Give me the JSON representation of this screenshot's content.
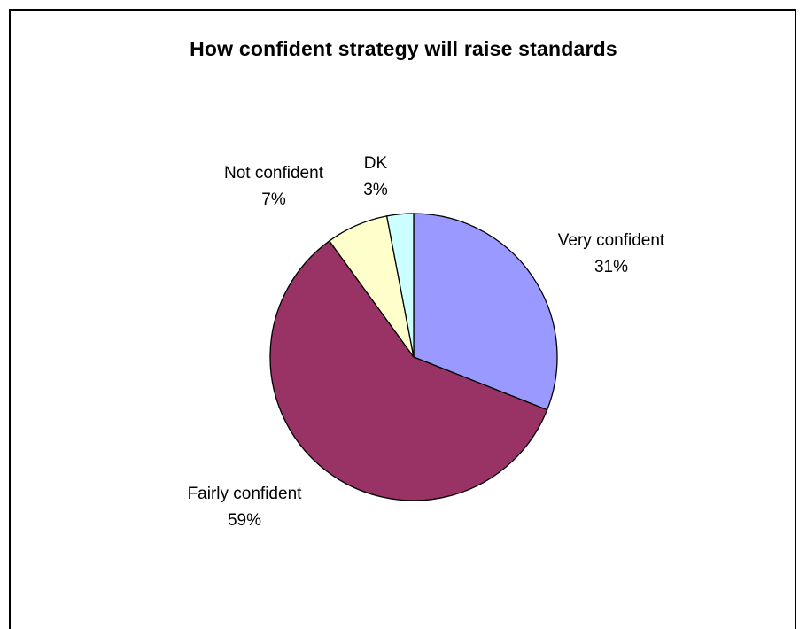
{
  "chart_data": {
    "type": "pie",
    "title": "How confident strategy will raise standards",
    "slices": [
      {
        "label": "Very confident",
        "percent_label": "31%",
        "value": 31,
        "color": "#9999FF"
      },
      {
        "label": "Fairly confident",
        "percent_label": "59%",
        "value": 59,
        "color": "#993366"
      },
      {
        "label": "Not confident",
        "percent_label": "7%",
        "value": 7,
        "color": "#FFFFCC"
      },
      {
        "label": "DK",
        "percent_label": "3%",
        "value": 3,
        "color": "#CCFFFF"
      }
    ],
    "start": "12 o'clock",
    "direction": "clockwise"
  }
}
